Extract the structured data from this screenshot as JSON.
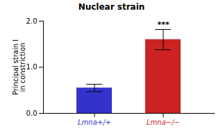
{
  "chart_data": {
    "type": "bar",
    "title": "Nuclear strain",
    "ylabel": "Principal strain I\nin constriction",
    "categories": [
      "Lmna+/+",
      "Lmna−/−"
    ],
    "values": [
      0.55,
      1.6
    ],
    "errors": [
      0.08,
      0.22
    ],
    "colors": [
      "#3333cc",
      "#cc2222"
    ],
    "ylim": [
      0,
      2.0
    ],
    "yticks": [
      {
        "value": 0,
        "label": "0.0"
      },
      {
        "value": 1,
        "label": "1.0"
      },
      {
        "value": 2,
        "label": "2.0"
      }
    ],
    "annotations": [
      {
        "text": "***",
        "category": "Lmna−/−"
      }
    ],
    "grid": false
  }
}
